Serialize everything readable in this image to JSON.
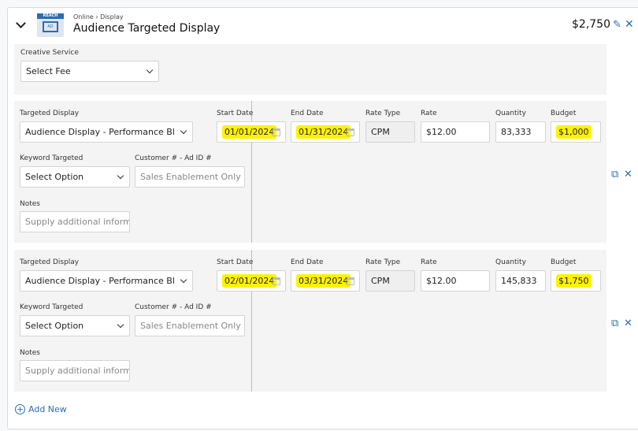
{
  "header": {
    "breadcrumb": "Online › Display",
    "title": "Audience Targeted Display",
    "total": "$2,750",
    "icon_badge": "REACH",
    "icon_text": "AD"
  },
  "creative": {
    "label": "Creative Service",
    "value": "Select Fee"
  },
  "labels": {
    "targeted": "Targeted Display",
    "start": "Start Date",
    "end": "End Date",
    "rate_type": "Rate Type",
    "rate": "Rate",
    "quantity": "Quantity",
    "budget": "Budget",
    "keyword": "Keyword Targeted",
    "customer": "Customer # - Ad ID #",
    "notes": "Notes"
  },
  "lines": [
    {
      "targeted": "Audience Display - Performance Blended",
      "start": "01/01/2024",
      "end": "01/31/2024",
      "rate_type": "CPM",
      "rate": "$12.00",
      "quantity": "83,333",
      "budget": "$1,000",
      "keyword": "Select Option",
      "customer_placeholder": "Sales Enablement Only",
      "notes_placeholder": "Supply additional information"
    },
    {
      "targeted": "Audience Display - Performance Blended",
      "start": "02/01/2024",
      "end": "03/31/2024",
      "rate_type": "CPM",
      "rate": "$12.00",
      "quantity": "145,833",
      "budget": "$1,750",
      "keyword": "Select Option",
      "customer_placeholder": "Sales Enablement Only",
      "notes_placeholder": "Supply additional information"
    }
  ],
  "add_new": "Add New",
  "colors": {
    "accent": "#2a6db5",
    "highlight": "#fff200"
  }
}
